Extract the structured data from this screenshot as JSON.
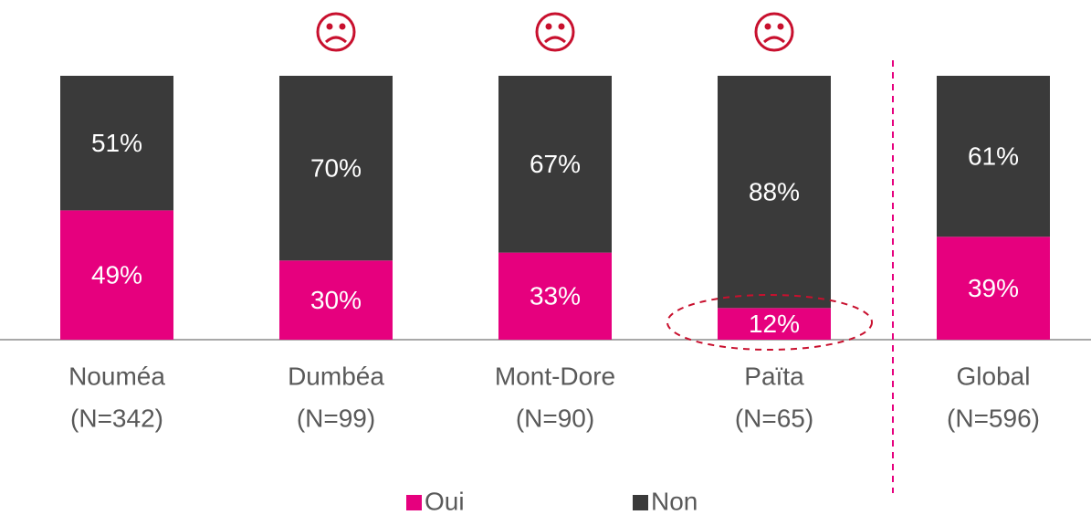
{
  "chart_data": {
    "type": "stacked_bar",
    "categories": [
      [
        "Nouméa",
        "(N=342)"
      ],
      [
        "Dumbéa",
        "(N=99)"
      ],
      [
        "Mont-Dore",
        "(N=90)"
      ],
      [
        "Païta",
        "(N=65)"
      ],
      [
        "Global",
        "(N=596)"
      ]
    ],
    "series": [
      {
        "name": "Oui",
        "color": "#e6007e",
        "values": [
          49,
          30,
          33,
          12,
          39
        ],
        "value_labels": [
          "49%",
          "30%",
          "33%",
          "12%",
          "39%"
        ]
      },
      {
        "name": "Non",
        "color": "#3a3a3a",
        "values": [
          51,
          70,
          67,
          88,
          61
        ],
        "value_labels": [
          "51%",
          "70%",
          "67%",
          "88%",
          "61%"
        ]
      }
    ],
    "ylim": [
      0,
      100
    ],
    "legend": "bottom"
  }
}
